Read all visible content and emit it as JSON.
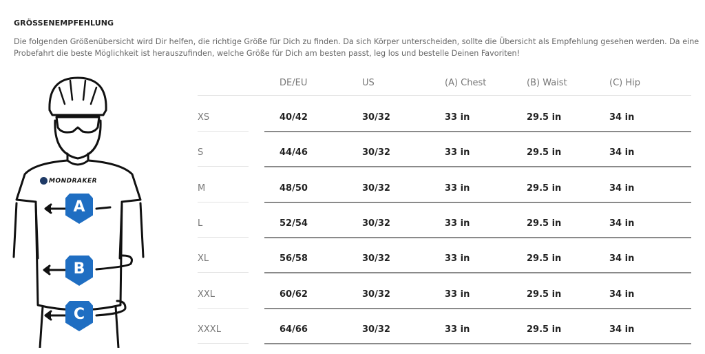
{
  "title": "GRÖSSENEMPFEHLUNG",
  "intro": "Die folgenden Größenübersicht wird Dir helfen, die richtige Größe für Dich zu finden. Da sich Körper unterscheiden, sollte die Übersicht als Empfehlung gesehen werden. Da eine Probefahrt die beste Möglichkeit ist herauszufinden, welche Größe für Dich am besten passt, leg los und bestelle Deinen Favoriten!",
  "figure": {
    "brand": "MONDRAKER",
    "markers": [
      "A",
      "B",
      "C"
    ],
    "accent_color": "#1f6ec2"
  },
  "table": {
    "headers": [
      "DE/EU",
      "US",
      "(A) Chest",
      "(B) Waist",
      "(C) Hip"
    ],
    "rows": [
      {
        "size": "XS",
        "values": [
          "40/42",
          "30/32",
          "33 in",
          "29.5 in",
          "34 in"
        ]
      },
      {
        "size": "S",
        "values": [
          "44/46",
          "30/32",
          "33 in",
          "29.5 in",
          "34 in"
        ]
      },
      {
        "size": "M",
        "values": [
          "48/50",
          "30/32",
          "33 in",
          "29.5 in",
          "34 in"
        ]
      },
      {
        "size": "L",
        "values": [
          "52/54",
          "30/32",
          "33 in",
          "29.5 in",
          "34 in"
        ]
      },
      {
        "size": "XL",
        "values": [
          "56/58",
          "30/32",
          "33 in",
          "29.5 in",
          "34 in"
        ]
      },
      {
        "size": "XXL",
        "values": [
          "60/62",
          "30/32",
          "33 in",
          "29.5 in",
          "34 in"
        ]
      },
      {
        "size": "XXXL",
        "values": [
          "64/66",
          "30/32",
          "33 in",
          "29.5 in",
          "34 in"
        ]
      }
    ]
  }
}
